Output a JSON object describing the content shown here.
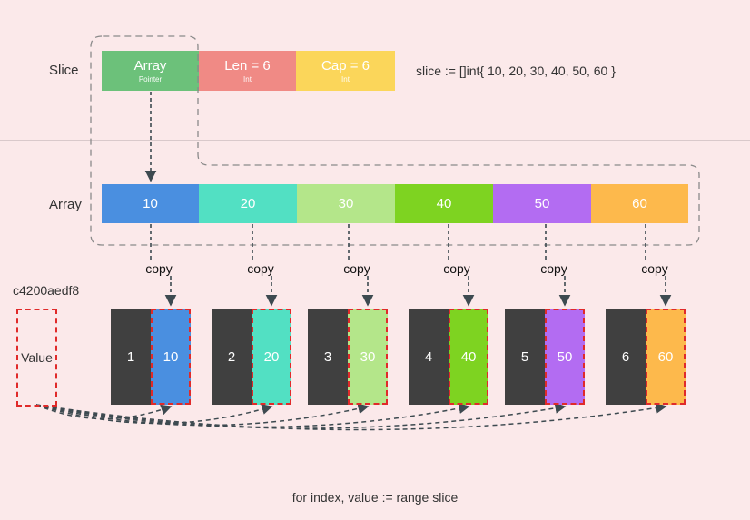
{
  "slice_row": {
    "label": "Slice",
    "cells": [
      {
        "main": "Array",
        "sub": "Pointer",
        "color": "#6cc17a"
      },
      {
        "main": "Len = 6",
        "sub": "Int",
        "color": "#f08a85"
      },
      {
        "main": "Cap = 6",
        "sub": "Int",
        "color": "#fbd65a"
      }
    ],
    "code": "slice := []int{ 10, 20, 30, 40, 50, 60 }"
  },
  "array_row": {
    "label": "Array",
    "cells": [
      {
        "value": "10",
        "color": "#4a8fe0"
      },
      {
        "value": "20",
        "color": "#52e0c3"
      },
      {
        "value": "30",
        "color": "#b4e68a"
      },
      {
        "value": "40",
        "color": "#7ed321"
      },
      {
        "value": "50",
        "color": "#b36cf2"
      },
      {
        "value": "60",
        "color": "#fdb94c"
      }
    ]
  },
  "copy_label": "copy",
  "address": "c4200aedf8",
  "value_label": "Value",
  "range_pairs": [
    {
      "index": "1",
      "value": "10",
      "color": "#4a8fe0"
    },
    {
      "index": "2",
      "value": "20",
      "color": "#52e0c3"
    },
    {
      "index": "3",
      "value": "30",
      "color": "#b4e68a"
    },
    {
      "index": "4",
      "value": "40",
      "color": "#7ed321"
    },
    {
      "index": "5",
      "value": "50",
      "color": "#b36cf2"
    },
    {
      "index": "6",
      "value": "60",
      "color": "#fdb94c"
    }
  ],
  "footer": "for index, value := range slice"
}
